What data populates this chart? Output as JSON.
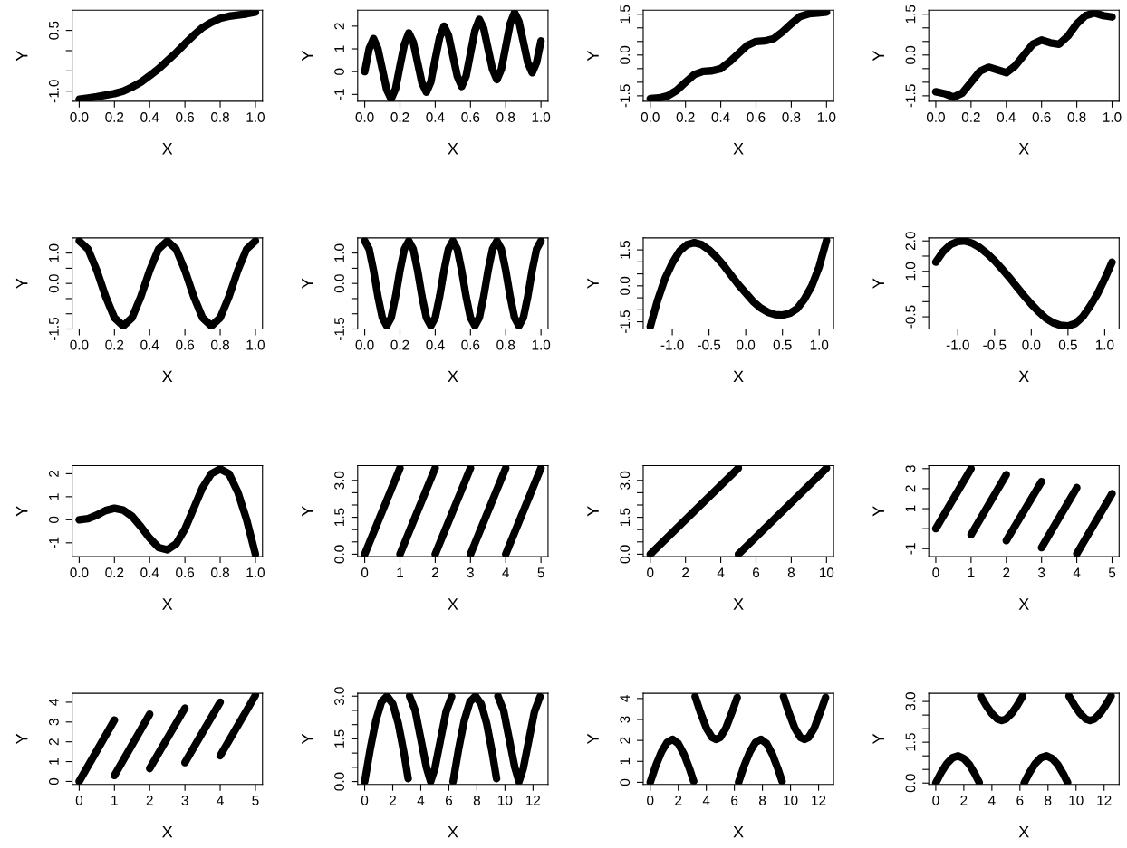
{
  "chart_data": [
    {
      "type": "line",
      "xlabel": "X",
      "ylabel": "Y",
      "x": [
        0,
        0.05,
        0.1,
        0.15,
        0.2,
        0.25,
        0.3,
        0.35,
        0.4,
        0.45,
        0.5,
        0.55,
        0.6,
        0.65,
        0.7,
        0.75,
        0.8,
        0.85,
        0.9,
        0.95,
        1.0
      ],
      "series": [
        {
          "color": "#000000",
          "values": [
            -1.2,
            -1.17,
            -1.14,
            -1.1,
            -1.06,
            -1.0,
            -0.9,
            -0.78,
            -0.62,
            -0.45,
            -0.25,
            -0.05,
            0.17,
            0.38,
            0.57,
            0.7,
            0.8,
            0.85,
            0.88,
            0.91,
            0.95
          ]
        }
      ],
      "xlim": [
        -0.04,
        1.04
      ],
      "ylim": [
        -1.25,
        1.0
      ],
      "xticks": [
        {
          "value": 0,
          "label": "0.0"
        },
        0.2,
        0.4,
        0.6,
        0.8,
        {
          "value": 1,
          "label": "1.0"
        }
      ],
      "yticks": [
        {
          "value": -1,
          "label": "-1.0"
        },
        {
          "value": -0.5,
          "label": null
        },
        {
          "value": 0,
          "label": null
        },
        0.5
      ]
    },
    {
      "type": "line",
      "xlabel": "X",
      "ylabel": "Y",
      "x": [
        0,
        0.025,
        0.05,
        0.075,
        0.1,
        0.125,
        0.15,
        0.175,
        0.2,
        0.225,
        0.25,
        0.275,
        0.3,
        0.325,
        0.35,
        0.375,
        0.4,
        0.425,
        0.45,
        0.475,
        0.5,
        0.525,
        0.55,
        0.575,
        0.6,
        0.625,
        0.65,
        0.675,
        0.7,
        0.725,
        0.75,
        0.775,
        0.8,
        0.825,
        0.85,
        0.875,
        0.9,
        0.925,
        0.95,
        0.975,
        1.0
      ],
      "series": [
        {
          "color": "#000000",
          "values": [
            0,
            1.0,
            1.45,
            1.0,
            0.1,
            -0.8,
            -1.2,
            -0.75,
            0.25,
            1.2,
            1.7,
            1.3,
            0.4,
            -0.5,
            -0.9,
            -0.45,
            0.55,
            1.5,
            2.0,
            1.6,
            0.7,
            -0.2,
            -0.65,
            -0.2,
            0.8,
            1.8,
            2.3,
            1.9,
            1.0,
            0.1,
            -0.35,
            0.1,
            1.1,
            2.1,
            2.6,
            2.2,
            1.3,
            0.4,
            -0.05,
            0.4,
            1.35
          ]
        }
      ],
      "xlim": [
        -0.04,
        1.04
      ],
      "ylim": [
        -1.3,
        2.7
      ],
      "xticks": [
        {
          "value": 0,
          "label": "0.0"
        },
        0.2,
        0.4,
        0.6,
        0.8,
        {
          "value": 1,
          "label": "1.0"
        }
      ],
      "yticks": [
        -1,
        0,
        1,
        2
      ]
    },
    {
      "type": "line",
      "xlabel": "X",
      "ylabel": "Y",
      "x": [
        0,
        0.05,
        0.1,
        0.15,
        0.2,
        0.25,
        0.3,
        0.35,
        0.4,
        0.45,
        0.5,
        0.55,
        0.6,
        0.65,
        0.7,
        0.75,
        0.8,
        0.85,
        0.9,
        0.95,
        1.0
      ],
      "series": [
        {
          "color": "#000000",
          "values": [
            -1.6,
            -1.58,
            -1.5,
            -1.3,
            -1.0,
            -0.72,
            -0.6,
            -0.58,
            -0.5,
            -0.25,
            0.05,
            0.35,
            0.5,
            0.52,
            0.6,
            0.85,
            1.15,
            1.42,
            1.52,
            1.55,
            1.58
          ]
        }
      ],
      "xlim": [
        -0.04,
        1.04
      ],
      "ylim": [
        -1.7,
        1.65
      ],
      "xticks": [
        {
          "value": 0,
          "label": "0.0"
        },
        0.2,
        0.4,
        0.6,
        0.8,
        {
          "value": 1,
          "label": "1.0"
        }
      ],
      "yticks": [
        -1.5,
        {
          "value": -1,
          "label": null
        },
        {
          "value": -0.5,
          "label": null
        },
        {
          "value": 0,
          "label": "0.0"
        },
        {
          "value": 0.5,
          "label": null
        },
        {
          "value": 1,
          "label": null
        },
        1.5
      ]
    },
    {
      "type": "line",
      "xlabel": "X",
      "ylabel": "Y",
      "x": [
        0,
        0.05,
        0.1,
        0.15,
        0.2,
        0.25,
        0.3,
        0.35,
        0.4,
        0.45,
        0.5,
        0.55,
        0.6,
        0.65,
        0.7,
        0.75,
        0.8,
        0.85,
        0.9,
        0.95,
        1.0
      ],
      "series": [
        {
          "color": "#000000",
          "values": [
            -1.35,
            -1.42,
            -1.55,
            -1.4,
            -1.0,
            -0.6,
            -0.45,
            -0.55,
            -0.65,
            -0.4,
            0.0,
            0.4,
            0.55,
            0.45,
            0.4,
            0.7,
            1.15,
            1.45,
            1.55,
            1.45,
            1.4
          ]
        }
      ],
      "xlim": [
        -0.04,
        1.04
      ],
      "ylim": [
        -1.7,
        1.65
      ],
      "xticks": [
        {
          "value": 0,
          "label": "0.0"
        },
        0.2,
        0.4,
        0.6,
        0.8,
        {
          "value": 1,
          "label": "1.0"
        }
      ],
      "yticks": [
        -1.5,
        {
          "value": -1,
          "label": null
        },
        {
          "value": -0.5,
          "label": null
        },
        {
          "value": 0,
          "label": "0.0"
        },
        {
          "value": 0.5,
          "label": null
        },
        {
          "value": 1,
          "label": null
        },
        1.5
      ]
    },
    {
      "type": "line",
      "xlabel": "X",
      "ylabel": "Y",
      "x": [
        0,
        0.05,
        0.1,
        0.15,
        0.2,
        0.25,
        0.3,
        0.35,
        0.4,
        0.45,
        0.5,
        0.55,
        0.6,
        0.65,
        0.7,
        0.75,
        0.8,
        0.85,
        0.9,
        0.95,
        1.0
      ],
      "series": [
        {
          "color": "#000000",
          "values": [
            1.4,
            1.13,
            0.43,
            -0.43,
            -1.13,
            -1.4,
            -1.13,
            -0.43,
            0.43,
            1.13,
            1.4,
            1.13,
            0.43,
            -0.43,
            -1.13,
            -1.4,
            -1.13,
            -0.43,
            0.43,
            1.13,
            1.4
          ]
        }
      ],
      "xlim": [
        -0.04,
        1.04
      ],
      "ylim": [
        -1.5,
        1.5
      ],
      "xticks": [
        {
          "value": 0,
          "label": "0.0"
        },
        0.2,
        0.4,
        0.6,
        0.8,
        {
          "value": 1,
          "label": "1.0"
        }
      ],
      "yticks": [
        -1.5,
        {
          "value": -1,
          "label": null
        },
        {
          "value": -0.5,
          "label": null
        },
        {
          "value": 0,
          "label": "0.0"
        },
        {
          "value": 0.5,
          "label": null
        },
        {
          "value": 1,
          "label": "1.0"
        }
      ]
    },
    {
      "type": "line",
      "xlabel": "X",
      "ylabel": "Y",
      "x": [
        0,
        0.025,
        0.05,
        0.075,
        0.1,
        0.125,
        0.15,
        0.175,
        0.2,
        0.225,
        0.25,
        0.275,
        0.3,
        0.325,
        0.35,
        0.375,
        0.4,
        0.425,
        0.45,
        0.475,
        0.5,
        0.525,
        0.55,
        0.575,
        0.6,
        0.625,
        0.65,
        0.675,
        0.7,
        0.725,
        0.75,
        0.775,
        0.8,
        0.825,
        0.85,
        0.875,
        0.9,
        0.925,
        0.95,
        0.975,
        1.0
      ],
      "series": [
        {
          "color": "#000000",
          "values": [
            1.4,
            1.13,
            0.43,
            -0.43,
            -1.13,
            -1.4,
            -1.13,
            -0.43,
            0.43,
            1.13,
            1.4,
            1.13,
            0.43,
            -0.43,
            -1.13,
            -1.4,
            -1.13,
            -0.43,
            0.43,
            1.13,
            1.4,
            1.13,
            0.43,
            -0.43,
            -1.13,
            -1.4,
            -1.13,
            -0.43,
            0.43,
            1.13,
            1.4,
            1.13,
            0.43,
            -0.43,
            -1.13,
            -1.4,
            -1.13,
            -0.43,
            0.43,
            1.13,
            1.4
          ]
        }
      ],
      "xlim": [
        -0.04,
        1.04
      ],
      "ylim": [
        -1.5,
        1.5
      ],
      "xticks": [
        {
          "value": 0,
          "label": "0.0"
        },
        0.2,
        0.4,
        0.6,
        0.8,
        {
          "value": 1,
          "label": "1.0"
        }
      ],
      "yticks": [
        -1.5,
        {
          "value": -1,
          "label": null
        },
        {
          "value": -0.5,
          "label": null
        },
        {
          "value": 0,
          "label": "0.0"
        },
        {
          "value": 0.5,
          "label": null
        },
        {
          "value": 1,
          "label": "1.0"
        }
      ]
    },
    {
      "type": "line",
      "xlabel": "X",
      "ylabel": "Y",
      "x": [
        -1.3,
        -1.2,
        -1.1,
        -1.0,
        -0.9,
        -0.8,
        -0.7,
        -0.6,
        -0.5,
        -0.4,
        -0.3,
        -0.2,
        -0.1,
        0,
        0.1,
        0.2,
        0.3,
        0.4,
        0.5,
        0.6,
        0.7,
        0.8,
        0.9,
        1.0,
        1.1
      ],
      "series": [
        {
          "color": "#000000",
          "values": [
            -1.7,
            -0.6,
            0.3,
            0.95,
            1.45,
            1.72,
            1.8,
            1.72,
            1.5,
            1.2,
            0.85,
            0.45,
            0.05,
            -0.3,
            -0.65,
            -0.92,
            -1.1,
            -1.2,
            -1.22,
            -1.15,
            -0.95,
            -0.55,
            0.0,
            0.8,
            1.9
          ]
        }
      ],
      "xlim": [
        -1.396,
        1.196
      ],
      "ylim": [
        -1.8,
        2.0
      ],
      "xticks": [
        {
          "value": -1,
          "label": "-1.0"
        },
        -0.5,
        {
          "value": 0,
          "label": "0.0"
        },
        0.5,
        {
          "value": 1,
          "label": "1.0"
        }
      ],
      "yticks": [
        -1.5,
        {
          "value": -1,
          "label": null
        },
        {
          "value": -0.5,
          "label": null
        },
        {
          "value": 0,
          "label": "0.0"
        },
        {
          "value": 0.5,
          "label": null
        },
        {
          "value": 1,
          "label": null
        },
        1.5
      ]
    },
    {
      "type": "line",
      "xlabel": "X",
      "ylabel": "Y",
      "x": [
        -1.3,
        -1.2,
        -1.1,
        -1.0,
        -0.9,
        -0.8,
        -0.7,
        -0.6,
        -0.5,
        -0.4,
        -0.3,
        -0.2,
        -0.1,
        0,
        0.1,
        0.2,
        0.3,
        0.4,
        0.5,
        0.6,
        0.7,
        0.8,
        0.9,
        1.0,
        1.1
      ],
      "series": [
        {
          "color": "#000000",
          "values": [
            1.3,
            1.65,
            1.88,
            1.98,
            2.0,
            1.92,
            1.78,
            1.58,
            1.35,
            1.08,
            0.8,
            0.5,
            0.2,
            -0.08,
            -0.33,
            -0.55,
            -0.7,
            -0.78,
            -0.8,
            -0.72,
            -0.5,
            -0.15,
            0.25,
            0.75,
            1.3
          ]
        }
      ],
      "xlim": [
        -1.396,
        1.196
      ],
      "ylim": [
        -0.9,
        2.1
      ],
      "xticks": [
        {
          "value": -1,
          "label": "-1.0"
        },
        -0.5,
        {
          "value": 0,
          "label": "0.0"
        },
        0.5,
        {
          "value": 1,
          "label": "1.0"
        }
      ],
      "yticks": [
        -0.5,
        {
          "value": 0,
          "label": null
        },
        {
          "value": 0.5,
          "label": null
        },
        {
          "value": 1,
          "label": "1.0"
        },
        {
          "value": 1.5,
          "label": null
        },
        {
          "value": 2,
          "label": "2.0"
        }
      ]
    },
    {
      "type": "line",
      "xlabel": "X",
      "ylabel": "Y",
      "x": [
        0,
        0.05,
        0.1,
        0.15,
        0.2,
        0.25,
        0.3,
        0.35,
        0.4,
        0.45,
        0.5,
        0.55,
        0.6,
        0.65,
        0.7,
        0.75,
        0.8,
        0.85,
        0.9,
        0.95,
        1.0
      ],
      "series": [
        {
          "color": "#000000",
          "values": [
            0,
            0.05,
            0.2,
            0.4,
            0.5,
            0.42,
            0.15,
            -0.3,
            -0.8,
            -1.2,
            -1.3,
            -1.05,
            -0.4,
            0.5,
            1.4,
            2.0,
            2.2,
            2.0,
            1.2,
            0.0,
            -1.5
          ]
        }
      ],
      "xlim": [
        -0.04,
        1.04
      ],
      "ylim": [
        -1.6,
        2.35
      ],
      "xticks": [
        {
          "value": 0,
          "label": "0.0"
        },
        0.2,
        0.4,
        0.6,
        0.8,
        {
          "value": 1,
          "label": "1.0"
        }
      ],
      "yticks": [
        -1,
        0,
        1,
        2
      ]
    },
    {
      "type": "line",
      "xlabel": "X",
      "ylabel": "Y",
      "series": [
        {
          "color": "#000000",
          "x": [
            0,
            1
          ],
          "values": [
            0,
            3.5
          ]
        },
        {
          "color": "#000000",
          "x": [
            1,
            2
          ],
          "values": [
            0,
            3.5
          ]
        },
        {
          "color": "#000000",
          "x": [
            2,
            3
          ],
          "values": [
            0,
            3.5
          ]
        },
        {
          "color": "#000000",
          "x": [
            3,
            4
          ],
          "values": [
            0,
            3.5
          ]
        },
        {
          "color": "#000000",
          "x": [
            4,
            5
          ],
          "values": [
            0,
            3.5
          ]
        }
      ],
      "xlim": [
        -0.2,
        5.2
      ],
      "ylim": [
        -0.1,
        3.6
      ],
      "xticks": [
        0,
        1,
        2,
        3,
        4,
        5
      ],
      "yticks": [
        {
          "value": 0,
          "label": "0.0"
        },
        {
          "value": 0.5,
          "label": null
        },
        {
          "value": 1,
          "label": null
        },
        1.5,
        {
          "value": 2,
          "label": null
        },
        {
          "value": 2.5,
          "label": null
        },
        {
          "value": 3,
          "label": "3.0"
        }
      ]
    },
    {
      "type": "line",
      "xlabel": "X",
      "ylabel": "Y",
      "series": [
        {
          "color": "#000000",
          "x": [
            0,
            5
          ],
          "values": [
            0,
            3.5
          ]
        },
        {
          "color": "#000000",
          "x": [
            5,
            10
          ],
          "values": [
            0,
            3.5
          ]
        }
      ],
      "xlim": [
        -0.4,
        10.4
      ],
      "ylim": [
        -0.1,
        3.6
      ],
      "xticks": [
        0,
        2,
        4,
        6,
        8,
        10
      ],
      "yticks": [
        {
          "value": 0,
          "label": "0.0"
        },
        {
          "value": 0.5,
          "label": null
        },
        {
          "value": 1,
          "label": null
        },
        1.5,
        {
          "value": 2,
          "label": null
        },
        {
          "value": 2.5,
          "label": null
        },
        {
          "value": 3,
          "label": "3.0"
        }
      ]
    },
    {
      "type": "line",
      "xlabel": "X",
      "ylabel": "Y",
      "series": [
        {
          "color": "#000000",
          "x": [
            0,
            1
          ],
          "values": [
            0,
            3.0
          ]
        },
        {
          "color": "#000000",
          "x": [
            1,
            2
          ],
          "values": [
            -0.3,
            2.7
          ]
        },
        {
          "color": "#000000",
          "x": [
            2,
            3
          ],
          "values": [
            -0.6,
            2.35
          ]
        },
        {
          "color": "#000000",
          "x": [
            3,
            4
          ],
          "values": [
            -0.95,
            2.05
          ]
        },
        {
          "color": "#000000",
          "x": [
            4,
            5
          ],
          "values": [
            -1.25,
            1.75
          ]
        }
      ],
      "xlim": [
        -0.2,
        5.2
      ],
      "ylim": [
        -1.4,
        3.15
      ],
      "xticks": [
        0,
        1,
        2,
        3,
        4,
        5
      ],
      "yticks": [
        -1,
        {
          "value": 0,
          "label": null
        },
        1,
        2,
        3
      ]
    },
    {
      "type": "line",
      "xlabel": "X",
      "ylabel": "Y",
      "series": [
        {
          "color": "#000000",
          "x": [
            0,
            1
          ],
          "values": [
            0,
            3.1
          ]
        },
        {
          "color": "#000000",
          "x": [
            1,
            2
          ],
          "values": [
            0.3,
            3.4
          ]
        },
        {
          "color": "#000000",
          "x": [
            2,
            3
          ],
          "values": [
            0.65,
            3.7
          ]
        },
        {
          "color": "#000000",
          "x": [
            3,
            4
          ],
          "values": [
            0.95,
            4.0
          ]
        },
        {
          "color": "#000000",
          "x": [
            4,
            5
          ],
          "values": [
            1.3,
            4.35
          ]
        }
      ],
      "xlim": [
        -0.2,
        5.2
      ],
      "ylim": [
        -0.15,
        4.45
      ],
      "xticks": [
        0,
        1,
        2,
        3,
        4,
        5
      ],
      "yticks": [
        0,
        1,
        2,
        3,
        4
      ]
    },
    {
      "type": "line",
      "xlabel": "X",
      "ylabel": "Y",
      "series": [
        {
          "color": "#000000",
          "x": [
            0,
            0.4,
            0.8,
            1.2,
            1.6,
            2.0,
            2.4,
            2.8,
            3.1
          ],
          "values": [
            0,
            1.15,
            2.15,
            2.8,
            3.0,
            2.73,
            2.03,
            1.0,
            0.1
          ]
        },
        {
          "color": "#000000",
          "x": [
            3.2,
            3.6,
            4.0,
            4.4,
            4.7,
            5.0,
            5.4,
            5.8,
            6.2
          ],
          "values": [
            3.0,
            2.5,
            1.5,
            0.5,
            0.0,
            0.45,
            1.45,
            2.45,
            2.98
          ]
        },
        {
          "color": "#000000",
          "x": [
            6.3,
            6.7,
            7.1,
            7.5,
            7.9,
            8.3,
            8.7,
            9.1,
            9.4
          ],
          "values": [
            0,
            1.15,
            2.15,
            2.8,
            3.0,
            2.73,
            2.03,
            1.0,
            0.1
          ]
        },
        {
          "color": "#000000",
          "x": [
            9.5,
            9.9,
            10.3,
            10.7,
            11.0,
            11.3,
            11.7,
            12.1,
            12.5
          ],
          "values": [
            3.0,
            2.5,
            1.5,
            0.5,
            0.0,
            0.45,
            1.45,
            2.45,
            2.98
          ]
        }
      ],
      "xlim": [
        -0.5,
        13.07
      ],
      "ylim": [
        -0.1,
        3.1
      ],
      "xticks": [
        0,
        2,
        4,
        6,
        8,
        10,
        12
      ],
      "yticks": [
        {
          "value": 0,
          "label": "0.0"
        },
        {
          "value": 0.5,
          "label": null
        },
        {
          "value": 1,
          "label": null
        },
        1.5,
        {
          "value": 2,
          "label": null
        },
        {
          "value": 2.5,
          "label": null
        },
        {
          "value": 3,
          "label": "3.0"
        }
      ]
    },
    {
      "type": "line",
      "xlabel": "X",
      "ylabel": "Y",
      "series": [
        {
          "color": "#000000",
          "x": [
            0,
            0.4,
            0.8,
            1.2,
            1.6,
            2.0,
            2.4,
            2.8,
            3.1
          ],
          "values": [
            0,
            0.8,
            1.45,
            1.9,
            2.05,
            1.85,
            1.35,
            0.65,
            0.05
          ]
        },
        {
          "color": "#000000",
          "x": [
            3.2,
            3.6,
            4.0,
            4.4,
            4.7,
            5.0,
            5.4,
            5.8,
            6.2
          ],
          "values": [
            4.1,
            3.3,
            2.6,
            2.15,
            2.05,
            2.15,
            2.6,
            3.3,
            4.05
          ]
        },
        {
          "color": "#000000",
          "x": [
            6.3,
            6.7,
            7.1,
            7.5,
            7.9,
            8.3,
            8.7,
            9.1,
            9.4
          ],
          "values": [
            0,
            0.8,
            1.45,
            1.9,
            2.05,
            1.85,
            1.35,
            0.65,
            0.05
          ]
        },
        {
          "color": "#000000",
          "x": [
            9.5,
            9.9,
            10.3,
            10.7,
            11.0,
            11.3,
            11.7,
            12.1,
            12.5
          ],
          "values": [
            4.1,
            3.3,
            2.6,
            2.15,
            2.05,
            2.15,
            2.6,
            3.3,
            4.05
          ]
        }
      ],
      "xlim": [
        -0.5,
        13.07
      ],
      "ylim": [
        -0.1,
        4.25
      ],
      "xticks": [
        0,
        2,
        4,
        6,
        8,
        10,
        12
      ],
      "yticks": [
        0,
        1,
        2,
        3,
        4
      ]
    },
    {
      "type": "line",
      "xlabel": "X",
      "ylabel": "Y",
      "series": [
        {
          "color": "#000000",
          "x": [
            0,
            0.4,
            0.8,
            1.2,
            1.6,
            2.0,
            2.4,
            2.8,
            3.1
          ],
          "values": [
            0,
            0.4,
            0.72,
            0.93,
            1.0,
            0.9,
            0.68,
            0.33,
            0.02
          ]
        },
        {
          "color": "#000000",
          "x": [
            3.2,
            3.6,
            4.0,
            4.4,
            4.7,
            5.0,
            5.4,
            5.8,
            6.2
          ],
          "values": [
            3.2,
            2.85,
            2.55,
            2.35,
            2.3,
            2.35,
            2.55,
            2.85,
            3.2
          ]
        },
        {
          "color": "#000000",
          "x": [
            6.3,
            6.7,
            7.1,
            7.5,
            7.9,
            8.3,
            8.7,
            9.1,
            9.4
          ],
          "values": [
            0,
            0.4,
            0.72,
            0.93,
            1.0,
            0.9,
            0.68,
            0.33,
            0.02
          ]
        },
        {
          "color": "#000000",
          "x": [
            9.5,
            9.9,
            10.3,
            10.7,
            11.0,
            11.3,
            11.7,
            12.1,
            12.5
          ],
          "values": [
            3.2,
            2.85,
            2.55,
            2.35,
            2.3,
            2.35,
            2.55,
            2.85,
            3.2
          ]
        }
      ],
      "xlim": [
        -0.5,
        13.07
      ],
      "ylim": [
        -0.05,
        3.3
      ],
      "xticks": [
        0,
        2,
        4,
        6,
        8,
        10,
        12
      ],
      "yticks": [
        {
          "value": 0,
          "label": "0.0"
        },
        {
          "value": 0.5,
          "label": null
        },
        {
          "value": 1,
          "label": null
        },
        1.5,
        {
          "value": 2,
          "label": null
        },
        {
          "value": 2.5,
          "label": null
        },
        {
          "value": 3,
          "label": "3.0"
        }
      ]
    }
  ]
}
